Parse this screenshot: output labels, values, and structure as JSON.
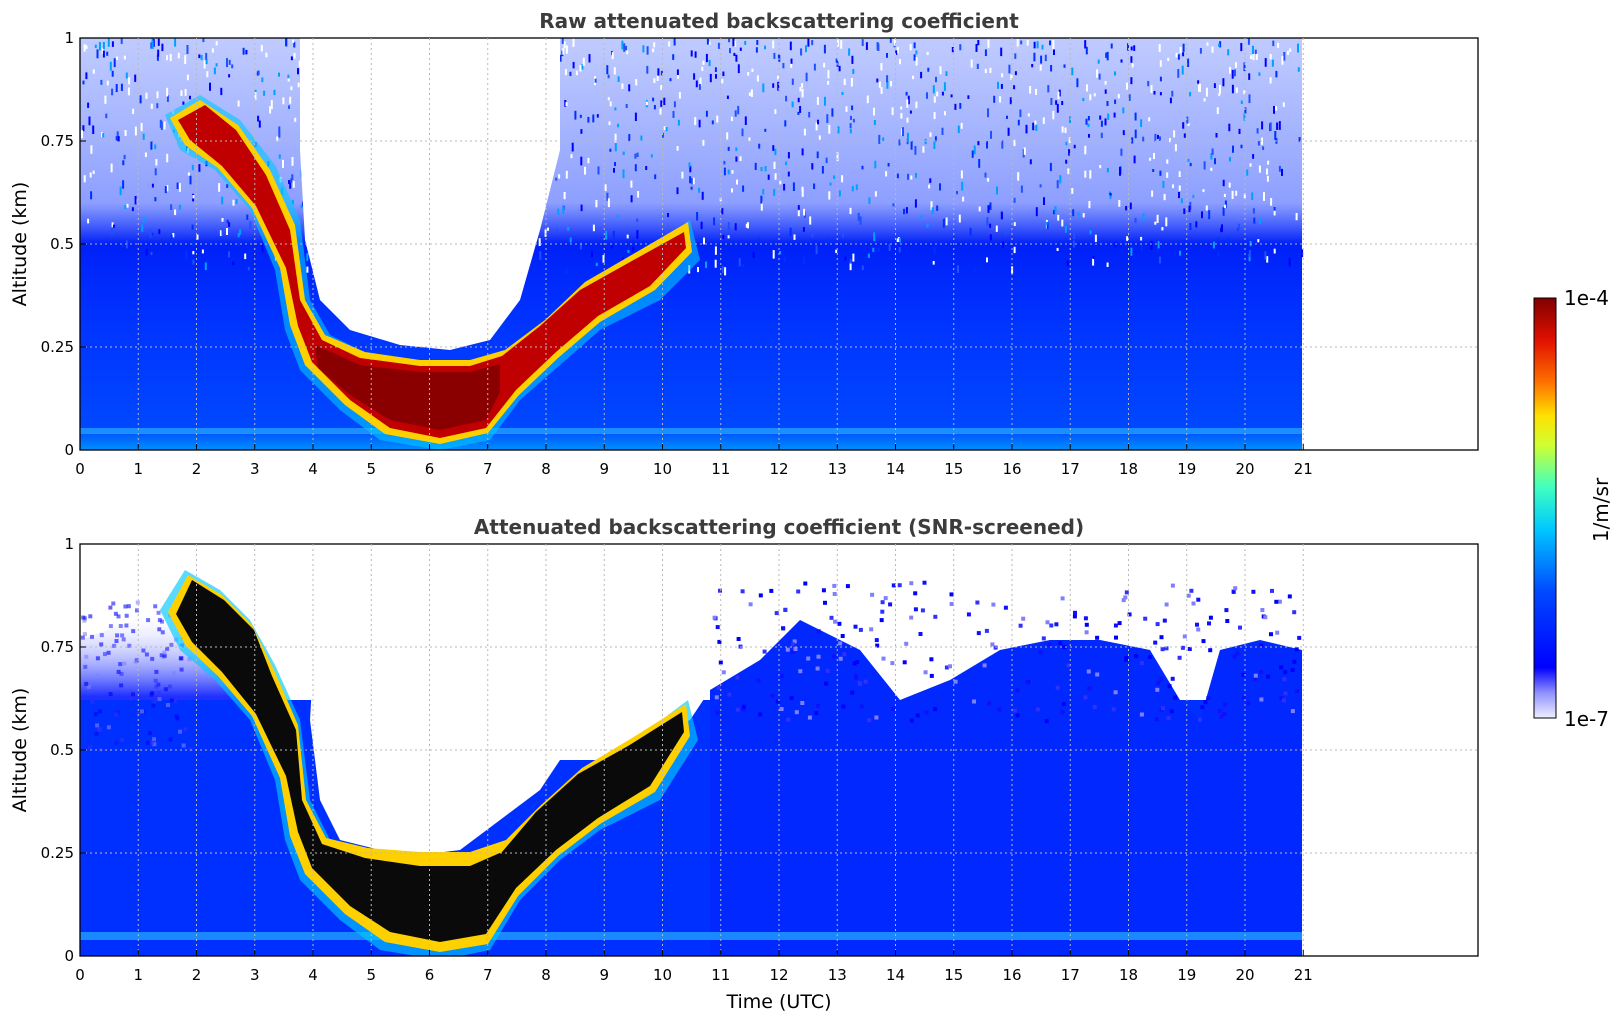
{
  "chart_data": [
    {
      "type": "heatmap",
      "title": "Raw attenuated backscattering coefficient",
      "xlabel": "",
      "ylabel": "Altitude (km)",
      "xlim": [
        0,
        24
      ],
      "ylim": [
        0,
        1
      ],
      "x_ticks": [
        "0",
        "1",
        "2",
        "3",
        "4",
        "5",
        "6",
        "7",
        "8",
        "9",
        "10",
        "11",
        "12",
        "13",
        "14",
        "15",
        "16",
        "17",
        "18",
        "19",
        "20",
        "21"
      ],
      "y_ticks": [
        "0",
        "0.25",
        "0.5",
        "0.75",
        "1"
      ],
      "grid": true,
      "data_end_hour": 21,
      "layer_altitude_km": [
        {
          "t": 1.5,
          "z": 0.78
        },
        {
          "t": 2,
          "z": 0.8
        },
        {
          "t": 2.5,
          "z": 0.74
        },
        {
          "t": 3,
          "z": 0.64
        },
        {
          "t": 3.5,
          "z": 0.5
        },
        {
          "t": 4,
          "z": 0.25
        },
        {
          "t": 5,
          "z": 0.16
        },
        {
          "t": 6,
          "z": 0.11
        },
        {
          "t": 7,
          "z": 0.15
        },
        {
          "t": 8,
          "z": 0.25
        },
        {
          "t": 9,
          "z": 0.35
        },
        {
          "t": 10,
          "z": 0.42
        },
        {
          "t": 10.8,
          "z": 0.55
        }
      ]
    },
    {
      "type": "heatmap",
      "title": "Attenuated backscattering coefficient (SNR-screened)",
      "xlabel": "Time (UTC)",
      "ylabel": "Altitude (km)",
      "xlim": [
        0,
        24
      ],
      "ylim": [
        0,
        1
      ],
      "x_ticks": [
        "0",
        "1",
        "2",
        "3",
        "4",
        "5",
        "6",
        "7",
        "8",
        "9",
        "10",
        "11",
        "12",
        "13",
        "14",
        "15",
        "16",
        "17",
        "18",
        "19",
        "20",
        "21"
      ],
      "y_ticks": [
        "0",
        "0.25",
        "0.5",
        "0.75",
        "1"
      ],
      "grid": true,
      "data_end_hour": 21
    }
  ],
  "colorbar": {
    "label": "1/m/sr",
    "max_label": "1e-4",
    "min_label": "1e-7",
    "colors": [
      "#eef0ff",
      "#0000ff",
      "#0040ff",
      "#00c0ff",
      "#30ffd0",
      "#c0ff40",
      "#ffe000",
      "#ff7000",
      "#e01000",
      "#800000"
    ]
  }
}
